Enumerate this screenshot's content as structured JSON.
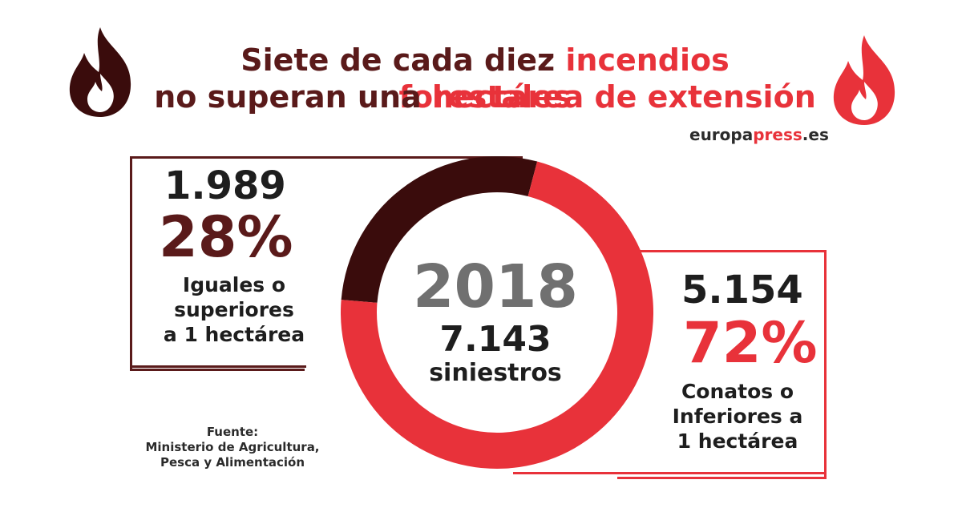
{
  "header": {
    "title_line1_a": "Siete de cada diez ",
    "title_line1_b": "incendios forestales",
    "title_line2_a": "no superan una ",
    "title_line2_b": "hectárea de extensión"
  },
  "brand": {
    "part1": "europa",
    "part2": "press",
    "part3": ".es"
  },
  "center": {
    "year": "2018",
    "total": "7.143",
    "total_label": "siniestros"
  },
  "left_box": {
    "count": "1.989",
    "percent": "28%",
    "desc_line1": "Iguales o",
    "desc_line2": "superiores",
    "desc_line3": "a 1 hectárea"
  },
  "right_box": {
    "count": "5.154",
    "percent": "72%",
    "desc_line1": "Conatos o",
    "desc_line2": "Inferiores a",
    "desc_line3": "1 hectárea"
  },
  "source": {
    "line1": "Fuente:",
    "line2": "Ministerio de Agricultura,",
    "line3": "Pesca y Alimentación"
  },
  "colors": {
    "dark": "#5a1a1a",
    "darkest": "#3a0c0c",
    "accent": "#e8323a",
    "gray": "#707070"
  },
  "icons": [
    "flame-icon-dark",
    "flame-icon-red"
  ],
  "chart_data": {
    "type": "pie",
    "donut": true,
    "labels": [
      "Iguales o superiores a 1 hectárea",
      "Conatos o Inferiores a 1 hectárea"
    ],
    "values": [
      1989,
      5154
    ],
    "percents": [
      28,
      72
    ],
    "total": 7143,
    "colors": [
      "#3a0c0c",
      "#e8323a"
    ]
  }
}
